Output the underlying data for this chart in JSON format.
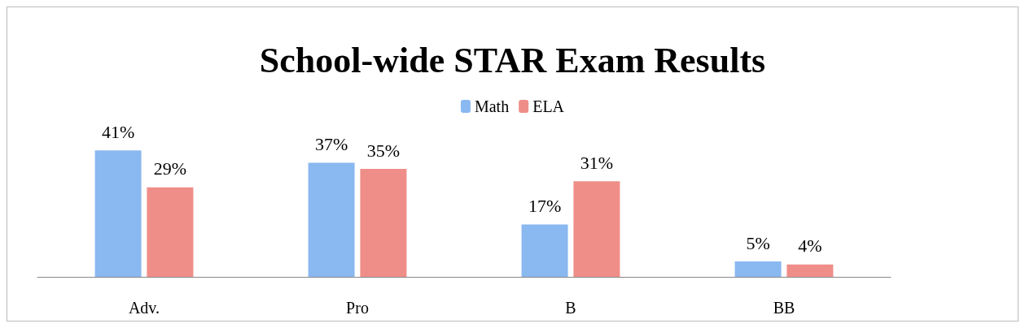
{
  "chart_data": {
    "type": "bar",
    "title": "School-wide STAR Exam Results",
    "categories": [
      "Adv.",
      "Pro",
      "B",
      "BB"
    ],
    "series": [
      {
        "name": "Math",
        "color": "#8ab8f0",
        "values": [
          41,
          37,
          17,
          5
        ],
        "value_labels": [
          "41%",
          "37%",
          "17%",
          "5%"
        ]
      },
      {
        "name": "ELA",
        "color": "#ef8e88",
        "values": [
          29,
          35,
          31,
          4
        ],
        "value_labels": [
          "29%",
          "35%",
          "31%",
          "4%"
        ]
      }
    ],
    "legend": "top"
  }
}
